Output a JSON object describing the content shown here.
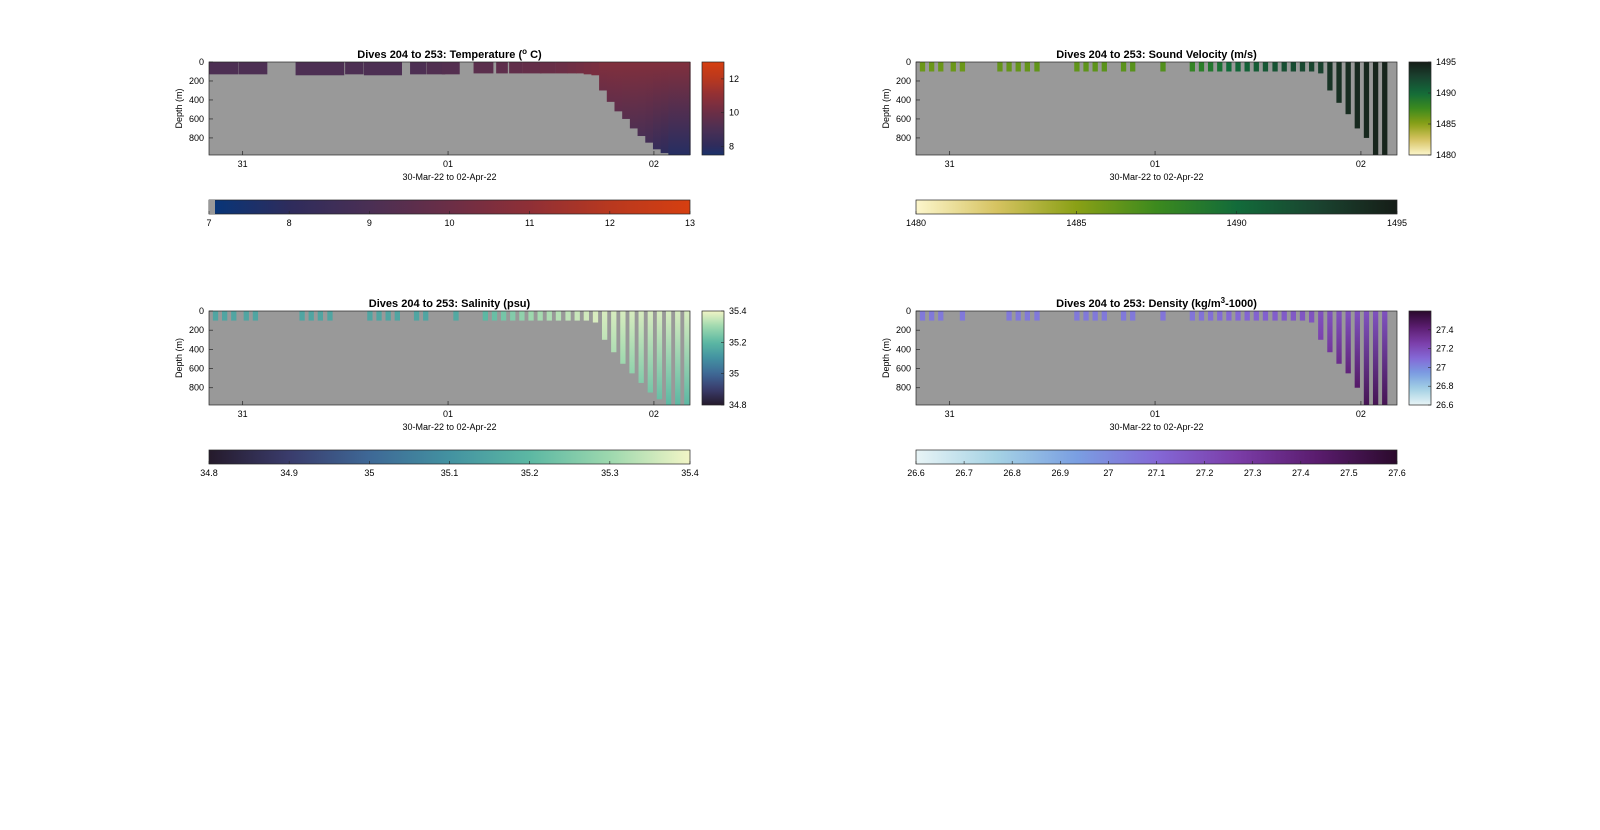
{
  "chart_data": [
    {
      "type": "heatmap",
      "title": "Dives 204 to 253: Temperature (",
      "title_sup": "o",
      "title_tail": " C)",
      "ylabel": "Depth (m)",
      "xlabel": "30-Mar-22 to 02-Apr-22",
      "x_ticks": [
        "31",
        "01",
        "02"
      ],
      "y_ticks": [
        "0",
        "200",
        "400",
        "600",
        "800"
      ],
      "ylim": [
        0,
        980
      ],
      "side_colorbar_ticks": [
        "8",
        "10",
        "12"
      ],
      "side_colorbar_range": [
        7.5,
        13.0
      ],
      "colorbar_ticks": [
        "7",
        "8",
        "9",
        "10",
        "11",
        "12",
        "13"
      ],
      "colorbar_range": [
        7,
        13
      ],
      "colors": [
        "#05367a",
        "#2e2c5c",
        "#4a2f54",
        "#6b2e46",
        "#8f2f36",
        "#b8381f",
        "#d63f10"
      ],
      "background_color": "#999999",
      "profiles": {
        "x_start": [
          0.0,
          0.062,
          0.18,
          0.283,
          0.322,
          0.418,
          0.452,
          0.484,
          0.55,
          0.597,
          0.624,
          0.651,
          0.688,
          0.721,
          0.745,
          0.763,
          0.779,
          0.795,
          0.811,
          0.827,
          0.843,
          0.859,
          0.875,
          0.891,
          0.907,
          0.923,
          0.939,
          0.955
        ],
        "x_end": [
          0.06,
          0.12,
          0.28,
          0.32,
          0.4,
          0.45,
          0.49,
          0.52,
          0.59,
          0.62,
          0.65,
          0.69,
          0.72,
          0.745,
          0.763,
          0.779,
          0.795,
          0.811,
          0.827,
          0.843,
          0.859,
          0.875,
          0.891,
          0.907,
          0.923,
          0.939,
          0.955,
          1.0
        ],
        "depth": [
          130,
          130,
          140,
          130,
          140,
          130,
          130,
          130,
          120,
          120,
          120,
          120,
          120,
          120,
          120,
          120,
          130,
          140,
          300,
          420,
          520,
          600,
          700,
          780,
          850,
          920,
          960,
          980
        ],
        "surface_value": [
          9.1,
          9.1,
          9.1,
          9.1,
          9.1,
          9.1,
          9.2,
          9.3,
          9.5,
          9.6,
          9.7,
          9.8,
          9.9,
          10.0,
          10.1,
          10.2,
          10.3,
          10.4,
          10.6,
          10.6,
          10.6,
          10.6,
          10.6,
          10.6,
          10.6,
          10.6,
          10.6,
          10.6
        ],
        "bottom_value": [
          9.1,
          9.1,
          9.1,
          9.1,
          9.1,
          9.1,
          9.2,
          9.3,
          9.5,
          9.6,
          9.7,
          9.8,
          9.9,
          10.0,
          10.1,
          10.2,
          10.3,
          10.4,
          10.0,
          9.8,
          9.6,
          9.4,
          9.2,
          9.0,
          8.7,
          8.3,
          8.0,
          7.8
        ]
      }
    },
    {
      "type": "heatmap",
      "title": "Dives 204 to 253: Sound Velocity (m/s)",
      "ylabel": "Depth (m)",
      "xlabel": "30-Mar-22 to 02-Apr-22",
      "x_ticks": [
        "31",
        "01",
        "02"
      ],
      "y_ticks": [
        "0",
        "200",
        "400",
        "600",
        "800"
      ],
      "ylim": [
        0,
        980
      ],
      "side_colorbar_ticks": [
        "1480",
        "1485",
        "1490",
        "1495"
      ],
      "side_colorbar_range": [
        1480,
        1495
      ],
      "colorbar_ticks": [
        "1480",
        "1485",
        "1490",
        "1495"
      ],
      "colorbar_range": [
        1480,
        1495
      ],
      "colors": [
        "#fcf6cc",
        "#d6c361",
        "#8aa016",
        "#3c8a1e",
        "#126b3a",
        "#1a4430",
        "#161d17"
      ],
      "background_color": "#999999",
      "profiles": {
        "x_start": [
          0.008,
          0.027,
          0.046,
          0.072,
          0.091,
          0.169,
          0.188,
          0.207,
          0.226,
          0.246,
          0.329,
          0.348,
          0.367,
          0.386,
          0.426,
          0.445,
          0.508,
          0.569,
          0.588,
          0.607,
          0.626,
          0.645,
          0.664,
          0.683,
          0.702,
          0.721,
          0.741,
          0.76,
          0.779,
          0.798,
          0.817,
          0.836,
          0.855,
          0.874,
          0.893,
          0.912,
          0.931,
          0.95,
          0.969
        ],
        "depth": [
          100,
          100,
          100,
          100,
          100,
          100,
          100,
          100,
          100,
          100,
          100,
          100,
          100,
          100,
          100,
          100,
          100,
          100,
          100,
          100,
          100,
          100,
          100,
          100,
          100,
          100,
          100,
          100,
          100,
          100,
          100,
          120,
          300,
          430,
          550,
          700,
          800,
          980,
          980
        ],
        "surface_value": [
          1486.0,
          1486.0,
          1486.0,
          1486.0,
          1486.0,
          1486.2,
          1486.2,
          1486.2,
          1486.2,
          1486.3,
          1486.3,
          1486.4,
          1486.4,
          1486.5,
          1486.5,
          1486.6,
          1486.8,
          1488.0,
          1488.5,
          1489.0,
          1489.5,
          1490.0,
          1490.3,
          1490.6,
          1490.9,
          1491.2,
          1491.5,
          1491.8,
          1492.0,
          1492.2,
          1492.4,
          1492.6,
          1493.5,
          1493.8,
          1494.0,
          1494.2,
          1494.3,
          1494.5,
          1494.5
        ],
        "bottom_value": [
          1486.0,
          1486.0,
          1486.0,
          1486.0,
          1486.0,
          1486.2,
          1486.2,
          1486.2,
          1486.2,
          1486.3,
          1486.3,
          1486.4,
          1486.4,
          1486.5,
          1486.5,
          1486.6,
          1486.8,
          1488.0,
          1488.5,
          1489.0,
          1489.5,
          1490.0,
          1490.3,
          1490.6,
          1490.9,
          1491.2,
          1491.5,
          1491.8,
          1492.0,
          1492.2,
          1492.4,
          1492.6,
          1493.5,
          1493.8,
          1494.0,
          1494.2,
          1494.3,
          1494.5,
          1494.5
        ]
      }
    },
    {
      "type": "heatmap",
      "title": "Dives 204 to 253: Salinity (psu)",
      "ylabel": "Depth (m)",
      "xlabel": "30-Mar-22 to 02-Apr-22",
      "x_ticks": [
        "31",
        "01",
        "02"
      ],
      "y_ticks": [
        "0",
        "200",
        "400",
        "600",
        "800"
      ],
      "ylim": [
        0,
        980
      ],
      "side_colorbar_ticks": [
        "34.8",
        "35",
        "35.2",
        "35.4"
      ],
      "side_colorbar_range": [
        34.8,
        35.4
      ],
      "colorbar_ticks": [
        "34.8",
        "34.9",
        "35",
        "35.1",
        "35.2",
        "35.3",
        "35.4"
      ],
      "colorbar_range": [
        34.8,
        35.4
      ],
      "colors": [
        "#251a2b",
        "#3a3c6c",
        "#3e6896",
        "#4392a1",
        "#5cb8a3",
        "#9dd8ae",
        "#f2f5c6"
      ],
      "background_color": "#999999",
      "profiles": {
        "x_start": [
          0.008,
          0.027,
          0.046,
          0.072,
          0.091,
          0.188,
          0.207,
          0.226,
          0.246,
          0.329,
          0.348,
          0.367,
          0.386,
          0.426,
          0.445,
          0.508,
          0.569,
          0.588,
          0.607,
          0.626,
          0.645,
          0.664,
          0.683,
          0.702,
          0.721,
          0.741,
          0.76,
          0.779,
          0.798,
          0.817,
          0.836,
          0.855,
          0.874,
          0.893,
          0.912,
          0.931,
          0.95,
          0.969,
          0.988
        ],
        "depth": [
          100,
          100,
          100,
          100,
          100,
          100,
          100,
          100,
          100,
          100,
          100,
          100,
          100,
          100,
          100,
          100,
          100,
          100,
          100,
          100,
          100,
          100,
          100,
          100,
          100,
          100,
          100,
          100,
          120,
          300,
          430,
          550,
          650,
          750,
          850,
          920,
          980,
          980,
          980
        ],
        "surface_value": [
          35.15,
          35.15,
          35.15,
          35.15,
          35.15,
          35.15,
          35.15,
          35.15,
          35.15,
          35.15,
          35.15,
          35.15,
          35.15,
          35.15,
          35.15,
          35.16,
          35.2,
          35.22,
          35.24,
          35.26,
          35.28,
          35.3,
          35.31,
          35.32,
          35.33,
          35.34,
          35.35,
          35.36,
          35.37,
          35.37,
          35.37,
          35.37,
          35.37,
          35.37,
          35.37,
          35.37,
          35.37,
          35.37,
          35.37
        ],
        "bottom_value": [
          35.15,
          35.15,
          35.15,
          35.15,
          35.15,
          35.15,
          35.15,
          35.15,
          35.15,
          35.15,
          35.15,
          35.15,
          35.15,
          35.15,
          35.15,
          35.16,
          35.2,
          35.22,
          35.24,
          35.26,
          35.28,
          35.3,
          35.31,
          35.32,
          35.33,
          35.34,
          35.35,
          35.36,
          35.37,
          35.34,
          35.32,
          35.3,
          35.28,
          35.26,
          35.24,
          35.22,
          35.2,
          35.2,
          35.2
        ]
      }
    },
    {
      "type": "heatmap",
      "title": "Dives 204 to 253: Density (kg/m",
      "title_sup": "3",
      "title_tail": "-1000)",
      "ylabel": "Depth (m)",
      "xlabel": "30-Mar-22 to 02-Apr-22",
      "x_ticks": [
        "31",
        "01",
        "02"
      ],
      "y_ticks": [
        "0",
        "200",
        "400",
        "600",
        "800"
      ],
      "ylim": [
        0,
        980
      ],
      "side_colorbar_ticks": [
        "26.6",
        "26.8",
        "27",
        "27.2",
        "27.4"
      ],
      "side_colorbar_range": [
        26.6,
        27.6
      ],
      "colorbar_ticks": [
        "26.6",
        "26.7",
        "26.8",
        "26.9",
        "27",
        "27.1",
        "27.2",
        "27.3",
        "27.4",
        "27.5",
        "27.6"
      ],
      "colorbar_range": [
        26.6,
        27.6
      ],
      "colors": [
        "#e8f4f6",
        "#a5d2e4",
        "#7a9fe2",
        "#8468d6",
        "#7b3da8",
        "#5a1c6e",
        "#2b0a2c"
      ],
      "background_color": "#999999",
      "profiles": {
        "x_start": [
          0.008,
          0.027,
          0.046,
          0.091,
          0.188,
          0.207,
          0.226,
          0.246,
          0.329,
          0.348,
          0.367,
          0.386,
          0.426,
          0.445,
          0.508,
          0.569,
          0.588,
          0.607,
          0.626,
          0.645,
          0.664,
          0.683,
          0.702,
          0.721,
          0.741,
          0.76,
          0.779,
          0.798,
          0.817,
          0.836,
          0.855,
          0.874,
          0.893,
          0.912,
          0.931,
          0.95,
          0.969
        ],
        "depth": [
          100,
          100,
          100,
          100,
          100,
          100,
          100,
          100,
          100,
          100,
          100,
          100,
          100,
          100,
          100,
          100,
          100,
          100,
          100,
          100,
          100,
          100,
          100,
          100,
          100,
          100,
          100,
          100,
          120,
          300,
          430,
          550,
          650,
          800,
          980,
          980,
          980
        ],
        "surface_value": [
          27.05,
          27.05,
          27.05,
          27.05,
          27.05,
          27.05,
          27.05,
          27.05,
          27.05,
          27.05,
          27.05,
          27.05,
          27.05,
          27.05,
          27.06,
          27.06,
          27.07,
          27.08,
          27.09,
          27.1,
          27.1,
          27.11,
          27.12,
          27.13,
          27.14,
          27.15,
          27.16,
          27.17,
          27.18,
          27.18,
          27.18,
          27.18,
          27.18,
          27.18,
          27.18,
          27.18,
          27.18
        ],
        "bottom_value": [
          27.05,
          27.05,
          27.05,
          27.05,
          27.05,
          27.05,
          27.05,
          27.05,
          27.05,
          27.05,
          27.05,
          27.05,
          27.05,
          27.05,
          27.06,
          27.06,
          27.07,
          27.08,
          27.09,
          27.1,
          27.1,
          27.11,
          27.12,
          27.13,
          27.14,
          27.15,
          27.16,
          27.17,
          27.18,
          27.25,
          27.3,
          27.35,
          27.4,
          27.45,
          27.5,
          27.5,
          27.5
        ]
      }
    }
  ]
}
